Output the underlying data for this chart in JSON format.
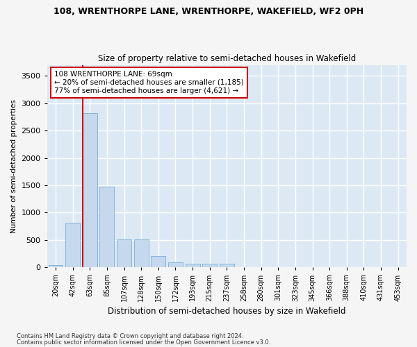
{
  "title1": "108, WRENTHORPE LANE, WRENTHORPE, WAKEFIELD, WF2 0PH",
  "title2": "Size of property relative to semi-detached houses in Wakefield",
  "xlabel": "Distribution of semi-detached houses by size in Wakefield",
  "ylabel": "Number of semi-detached properties",
  "categories": [
    "20sqm",
    "42sqm",
    "63sqm",
    "85sqm",
    "107sqm",
    "128sqm",
    "150sqm",
    "172sqm",
    "193sqm",
    "215sqm",
    "237sqm",
    "258sqm",
    "280sqm",
    "301sqm",
    "323sqm",
    "345sqm",
    "366sqm",
    "388sqm",
    "410sqm",
    "431sqm",
    "453sqm"
  ],
  "values": [
    40,
    820,
    2820,
    1480,
    510,
    510,
    200,
    90,
    70,
    65,
    65,
    0,
    0,
    0,
    0,
    0,
    0,
    0,
    0,
    0,
    0
  ],
  "bar_color": "#c5d8ed",
  "bar_edge_color": "#7aadd4",
  "annotation_text": "108 WRENTHORPE LANE: 69sqm\n← 20% of semi-detached houses are smaller (1,185)\n77% of semi-detached houses are larger (4,621) →",
  "annotation_box_color": "#ffffff",
  "annotation_box_edge": "#cc0000",
  "vline_color": "#cc0000",
  "background_color": "#dce9f5",
  "grid_color": "#ffffff",
  "fig_bg_color": "#f5f5f5",
  "ylim": [
    0,
    3700
  ],
  "yticks": [
    0,
    500,
    1000,
    1500,
    2000,
    2500,
    3000,
    3500
  ],
  "footer1": "Contains HM Land Registry data © Crown copyright and database right 2024.",
  "footer2": "Contains public sector information licensed under the Open Government Licence v3.0."
}
